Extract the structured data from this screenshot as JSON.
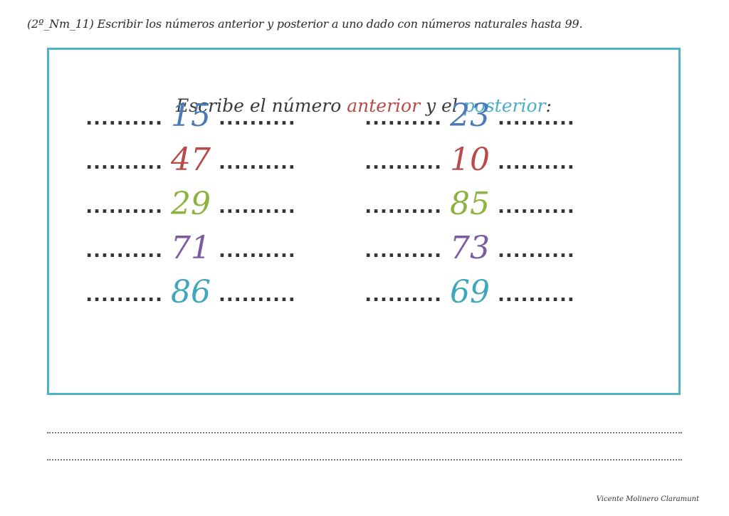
{
  "header": "(2º_Nm_11) Escribir los números anterior y posterior a uno dado con números naturales hasta 99.",
  "title": {
    "part1": "Escribe el número ",
    "ant": "anterior",
    "part2": " y el ",
    "pos": "posterior",
    "part3": ":"
  },
  "blank": "..........",
  "colors": {
    "blue": "#4a7ab8",
    "red": "#b84a4a",
    "green": "#8db33f",
    "purple": "#7a5aa0",
    "teal": "#3fa6bd",
    "frame": "#4fb3c6"
  },
  "left_numbers": [
    {
      "value": "15",
      "color": "#4a7ab8"
    },
    {
      "value": "47",
      "color": "#b84a4a"
    },
    {
      "value": "29",
      "color": "#8db33f"
    },
    {
      "value": "71",
      "color": "#7a5aa0"
    },
    {
      "value": "86",
      "color": "#3fa6bd"
    }
  ],
  "right_numbers": [
    {
      "value": "23",
      "color": "#4a7ab8"
    },
    {
      "value": "10",
      "color": "#b84a4a"
    },
    {
      "value": "85",
      "color": "#8db33f"
    },
    {
      "value": "73",
      "color": "#7a5aa0"
    },
    {
      "value": "69",
      "color": "#3fa6bd"
    }
  ],
  "footer": "Vicente Molinero Claramunt"
}
